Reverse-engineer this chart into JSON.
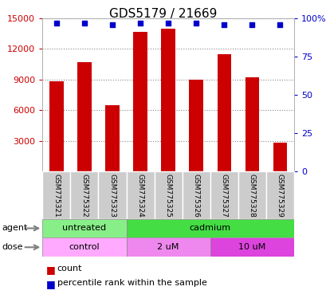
{
  "title": "GDS5179 / 21669",
  "samples": [
    "GSM775321",
    "GSM775322",
    "GSM775323",
    "GSM775324",
    "GSM775325",
    "GSM775326",
    "GSM775327",
    "GSM775328",
    "GSM775329"
  ],
  "counts": [
    8800,
    10700,
    6500,
    13700,
    14000,
    9000,
    11500,
    9200,
    2800
  ],
  "percentile_ranks": [
    97,
    97,
    96,
    97,
    97,
    97,
    96,
    96,
    96
  ],
  "ylim_left": [
    0,
    15000
  ],
  "ylim_right": [
    0,
    100
  ],
  "yticks_left": [
    3000,
    6000,
    9000,
    12000,
    15000
  ],
  "ytick_labels_left": [
    "3000",
    "6000",
    "9000",
    "12000",
    "15000"
  ],
  "yticks_right": [
    0,
    25,
    50,
    75,
    100
  ],
  "ytick_labels_right": [
    "0",
    "25",
    "50",
    "75",
    "100%"
  ],
  "bar_color": "#cc0000",
  "dot_color": "#0000cc",
  "agent_groups": [
    {
      "label": "untreated",
      "start": 0,
      "end": 3,
      "color": "#88ee88"
    },
    {
      "label": "cadmium",
      "start": 3,
      "end": 9,
      "color": "#44dd44"
    }
  ],
  "dose_groups": [
    {
      "label": "control",
      "start": 0,
      "end": 3,
      "color": "#ffaaff"
    },
    {
      "label": "2 uM",
      "start": 3,
      "end": 6,
      "color": "#ee88ee"
    },
    {
      "label": "10 uM",
      "start": 6,
      "end": 9,
      "color": "#dd44dd"
    }
  ],
  "legend_count_color": "#cc0000",
  "legend_pct_color": "#0000cc",
  "bg_plot": "#ffffff",
  "bg_xtick": "#cccccc",
  "grid_color": "#000000",
  "left_label_color": "#cc0000",
  "right_label_color": "#0000cc"
}
